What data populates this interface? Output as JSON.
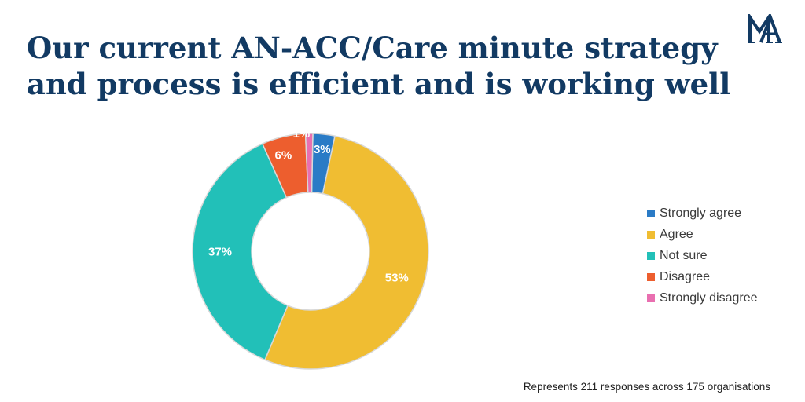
{
  "title_lines": [
    "Our current AN-ACC/Care minute strategy",
    "and process is efficient and is working well"
  ],
  "logo": {
    "icon": "am-monogram-logo",
    "color": "#123a63"
  },
  "footnote": "Represents 211 responses across 175 organisations",
  "chart_data": {
    "type": "pie",
    "donut": true,
    "categories": [
      "Strongly agree",
      "Agree",
      "Not sure",
      "Disagree",
      "Strongly disagree"
    ],
    "values": [
      3,
      53,
      37,
      6,
      1
    ],
    "labels": [
      "3%",
      "53%",
      "37%",
      "6%",
      "1%"
    ],
    "colors": [
      "#2a7bc6",
      "#f0bd32",
      "#22c0b8",
      "#ed5e2e",
      "#e96fb0"
    ],
    "legend_position": "right"
  }
}
